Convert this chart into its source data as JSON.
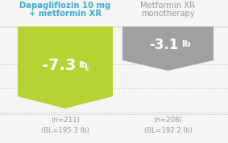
{
  "background_color": "#f5f5f5",
  "bar1_color": "#b5d433",
  "bar2_color": "#a0a0a0",
  "bar1_value": -7.3,
  "bar2_value": -3.1,
  "bar1_label": "-7.3",
  "bar1_superscript": "c",
  "bar1_unit": "lb",
  "bar2_label": "-3.1",
  "bar2_unit": "lb",
  "bar1_header_line1": "Dapagliflozin 10 mg",
  "bar1_header_line2": "+ metformin XR",
  "bar2_header_line1": "Metformin XR",
  "bar2_header_line2": "monotherapy",
  "bar1_header_color": "#3bacd0",
  "bar2_header_color": "#999999",
  "bar1_footnote": "(n=211)\n(BL=195.3 lb)",
  "bar2_footnote": "(n=208)\n(BL=192.2 lb)",
  "footnote_color": "#999999",
  "line_color": "#cccccc",
  "white": "#ffffff"
}
